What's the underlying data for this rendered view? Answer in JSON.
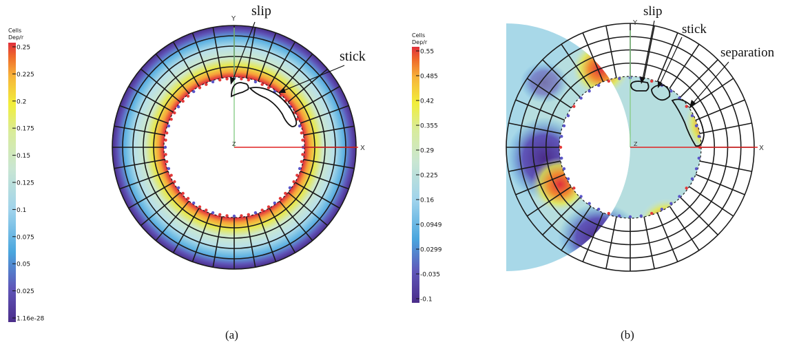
{
  "panels": [
    {
      "id": "a",
      "caption": "(a)",
      "colorbar": {
        "header": [
          "Cells",
          "Dep/r"
        ],
        "ticks": [
          "0.25",
          "0.225",
          "0.2",
          "0.175",
          "0.15",
          "0.125",
          "0.1",
          "0.075",
          "0.05",
          "0.025",
          "1.16e-28"
        ],
        "min": 1.16e-28,
        "max": 0.25
      },
      "axes": {
        "x": "X",
        "y": "Y",
        "z": "Z"
      },
      "annotations": [
        "slip",
        "stick"
      ]
    },
    {
      "id": "b",
      "caption": "(b)",
      "colorbar": {
        "header": [
          "Cells",
          "Dep/r"
        ],
        "ticks": [
          "0.55",
          "0.485",
          "0.42",
          "0.355",
          "0.29",
          "0.225",
          "0.16",
          "0.0949",
          "0.0299",
          "-0.035",
          "-0.1"
        ],
        "min": -0.1,
        "max": 0.55
      },
      "axes": {
        "x": "X",
        "y": "Y",
        "z": "Z"
      },
      "annotations": [
        "slip",
        "stick",
        "separation"
      ]
    }
  ],
  "colors": {
    "colormap": [
      "#4b2d8a",
      "#5f55b8",
      "#4aa6de",
      "#9fd3ec",
      "#c9e6d2",
      "#d9ec9a",
      "#f1ee3a",
      "#f7b43a",
      "#ef6a2a",
      "#e0303c"
    ],
    "x_axis": "#e02020",
    "y_axis": "#88cc88",
    "node_red": "#e33a3a",
    "node_blue": "#5a55c8"
  }
}
